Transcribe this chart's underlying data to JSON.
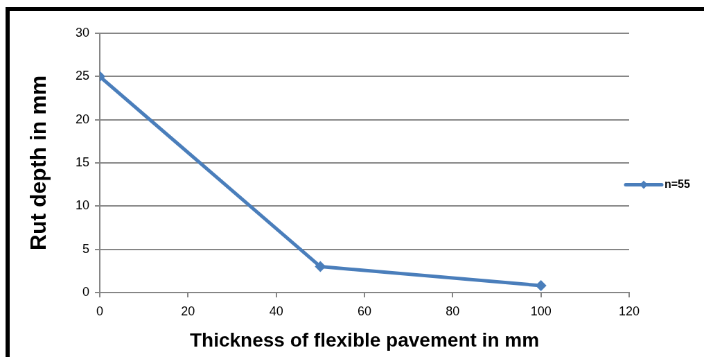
{
  "chart_data": {
    "type": "line",
    "xlabel": "Thickness of flexible pavement in mm",
    "ylabel": "Rut depth in mm",
    "x": [
      0,
      50,
      100
    ],
    "series": [
      {
        "name": "n=55",
        "color": "#4a7ebb",
        "values": [
          25,
          3,
          0.8
        ]
      }
    ],
    "xlim": [
      0,
      120
    ],
    "xticks": [
      0,
      20,
      40,
      60,
      80,
      100,
      120
    ],
    "ylim": [
      0,
      30
    ],
    "yticks": [
      0,
      5,
      10,
      15,
      20,
      25,
      30
    ],
    "grid": "y",
    "legend": "right",
    "marker": "diamond"
  }
}
